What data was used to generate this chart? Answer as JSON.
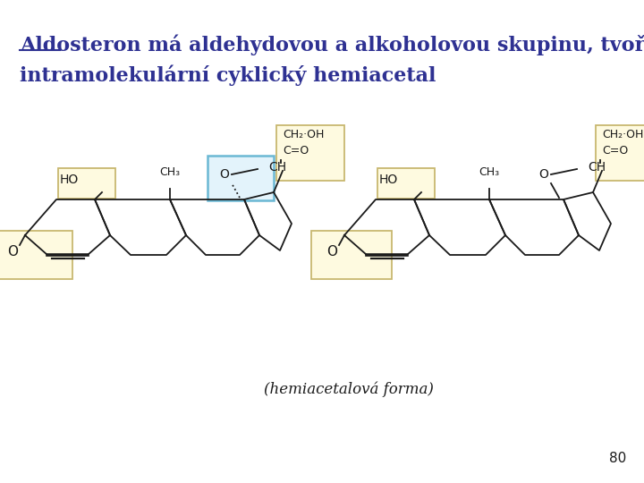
{
  "title_line1": "Aldosteron má aldehydovou a alkoholovou skupinu, tvoří",
  "title_line2": "intramolekulární cyklický hemiacetal",
  "title_color": "#2e3192",
  "title_fontsize": 16,
  "annotation_text": "(hemiacetalová forma)",
  "page_number": "80",
  "bg_color": "#ffffff",
  "col": "#1a1a1a",
  "blue_edge": "#6BB8D4",
  "blue_face": "#E3F3FB",
  "yellow_edge": "#C8B870",
  "yellow_face": "#FEFAE0"
}
